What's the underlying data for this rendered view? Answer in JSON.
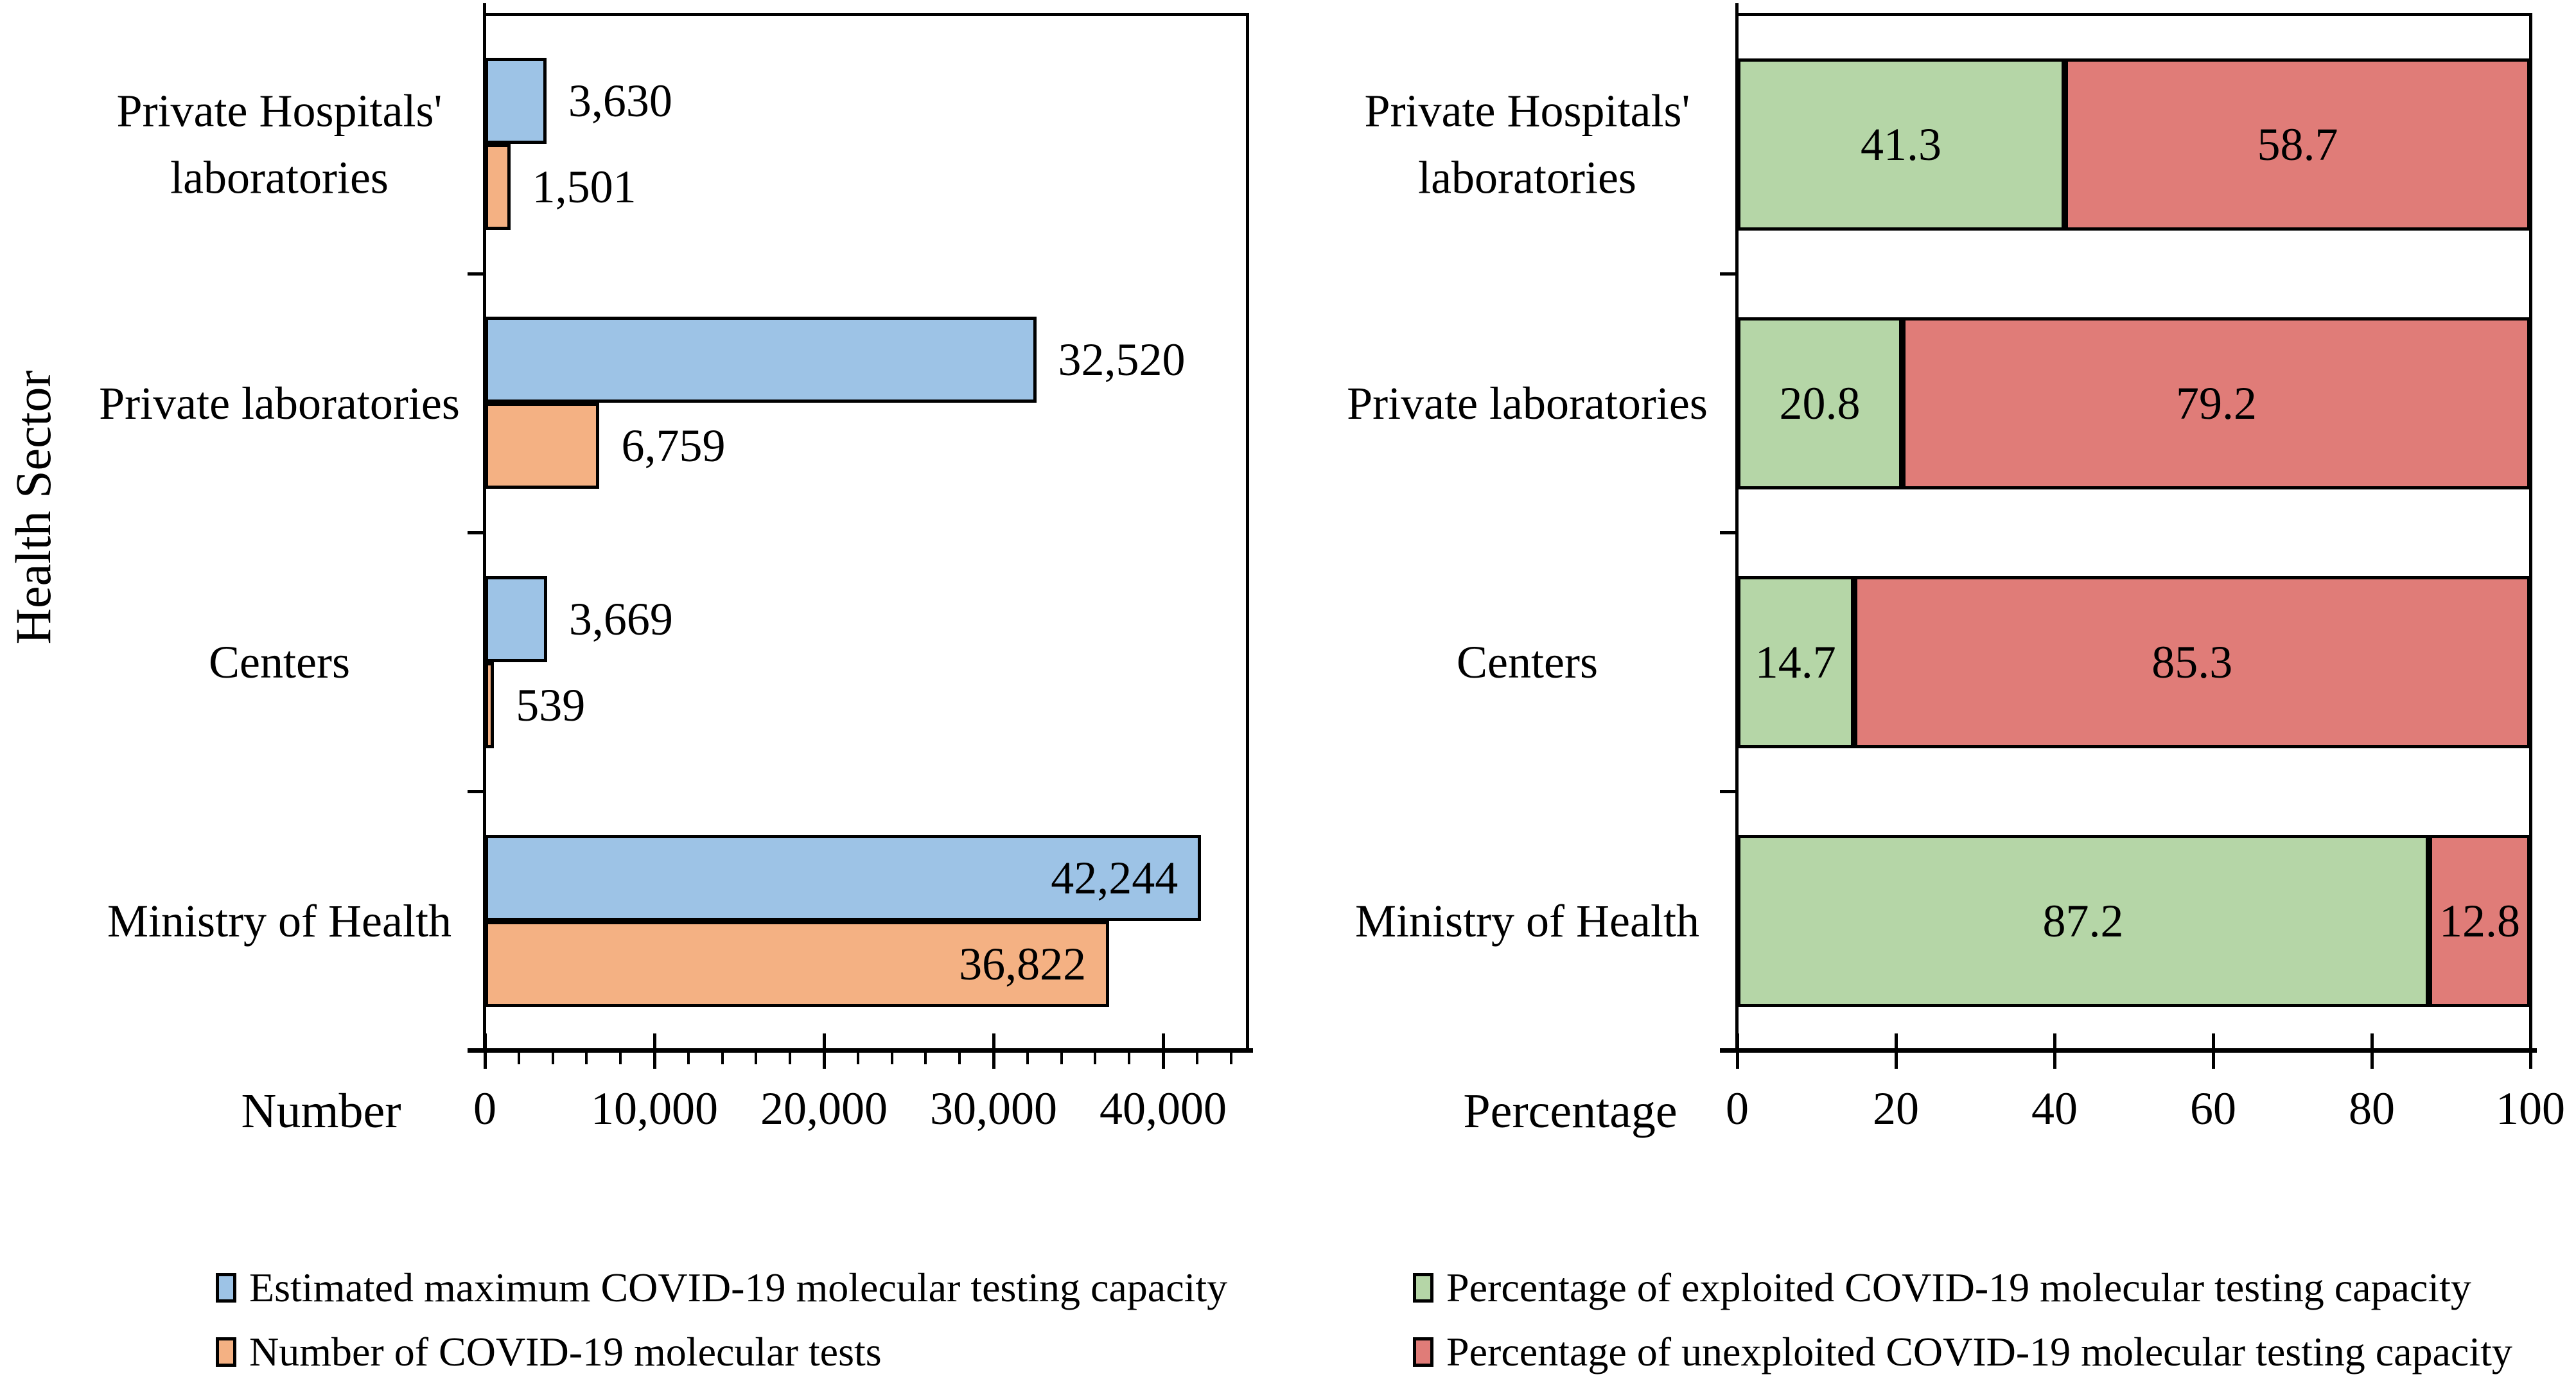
{
  "figure": {
    "background": "#FFFFFF",
    "shared_y_axis_title": "Health Sector"
  },
  "chart_data": [
    {
      "type": "bar",
      "orientation": "horizontal",
      "grouped": true,
      "xlabel": "Number",
      "ylabel": "Health Sector",
      "categories_top_to_bottom": [
        "Private Hospitals' laboratories",
        "Private laboratories",
        "Centers",
        "Ministry of Health"
      ],
      "category_lines": [
        [
          "Private Hospitals'",
          "laboratories"
        ],
        [
          "Private laboratories"
        ],
        [
          "Centers"
        ],
        [
          "Ministry of Health"
        ]
      ],
      "series": [
        {
          "name": "Estimated maximum COVID-19 molecular testing capacity",
          "color": "#9DC3E6",
          "values": [
            3630,
            32520,
            3669,
            42244
          ],
          "value_labels": [
            "3,630",
            "32,520",
            "3,669",
            "42,244"
          ]
        },
        {
          "name": "Number of COVID-19 molecular tests",
          "color": "#F4B183",
          "values": [
            1501,
            6759,
            539,
            36822
          ],
          "value_labels": [
            "1,501",
            "6,759",
            "539",
            "36,822"
          ]
        }
      ],
      "xlim": [
        0,
        45000
      ],
      "x_ticks": [
        0,
        10000,
        20000,
        30000,
        40000
      ],
      "x_tick_labels": [
        "0",
        "10,000",
        "20,000",
        "30,000",
        "40,000"
      ],
      "x_minor_tick_interval": 2000,
      "grid": false,
      "legend_position": "bottom-left",
      "bar_outline_color": "#000000"
    },
    {
      "type": "bar",
      "orientation": "horizontal",
      "stacked": true,
      "stacked_total": 100,
      "xlabel": "Percentage",
      "categories_top_to_bottom": [
        "Private Hospitals' laboratories",
        "Private laboratories",
        "Centers",
        "Ministry of Health"
      ],
      "category_lines": [
        [
          "Private Hospitals'",
          "laboratories"
        ],
        [
          "Private laboratories"
        ],
        [
          "Centers"
        ],
        [
          "Ministry of Health"
        ]
      ],
      "series": [
        {
          "name": "Percentage of exploited COVID-19 molecular testing capacity",
          "color": "#B5D6A7",
          "values": [
            41.3,
            20.8,
            14.7,
            87.2
          ],
          "value_labels": [
            "41.3",
            "20.8",
            "14.7",
            "87.2"
          ]
        },
        {
          "name": "Percentage of unexploited COVID-19 molecular testing capacity",
          "color": "#E07C78",
          "values": [
            58.7,
            79.2,
            85.3,
            12.8
          ],
          "value_labels": [
            "58.7",
            "79.2",
            "85.3",
            "12.8"
          ]
        }
      ],
      "xlim": [
        0,
        100
      ],
      "x_ticks": [
        0,
        20,
        40,
        60,
        80,
        100
      ],
      "x_tick_labels": [
        "0",
        "20",
        "40",
        "60",
        "80",
        "100"
      ],
      "grid": false,
      "legend_position": "bottom-right",
      "bar_outline_color": "#000000"
    }
  ]
}
